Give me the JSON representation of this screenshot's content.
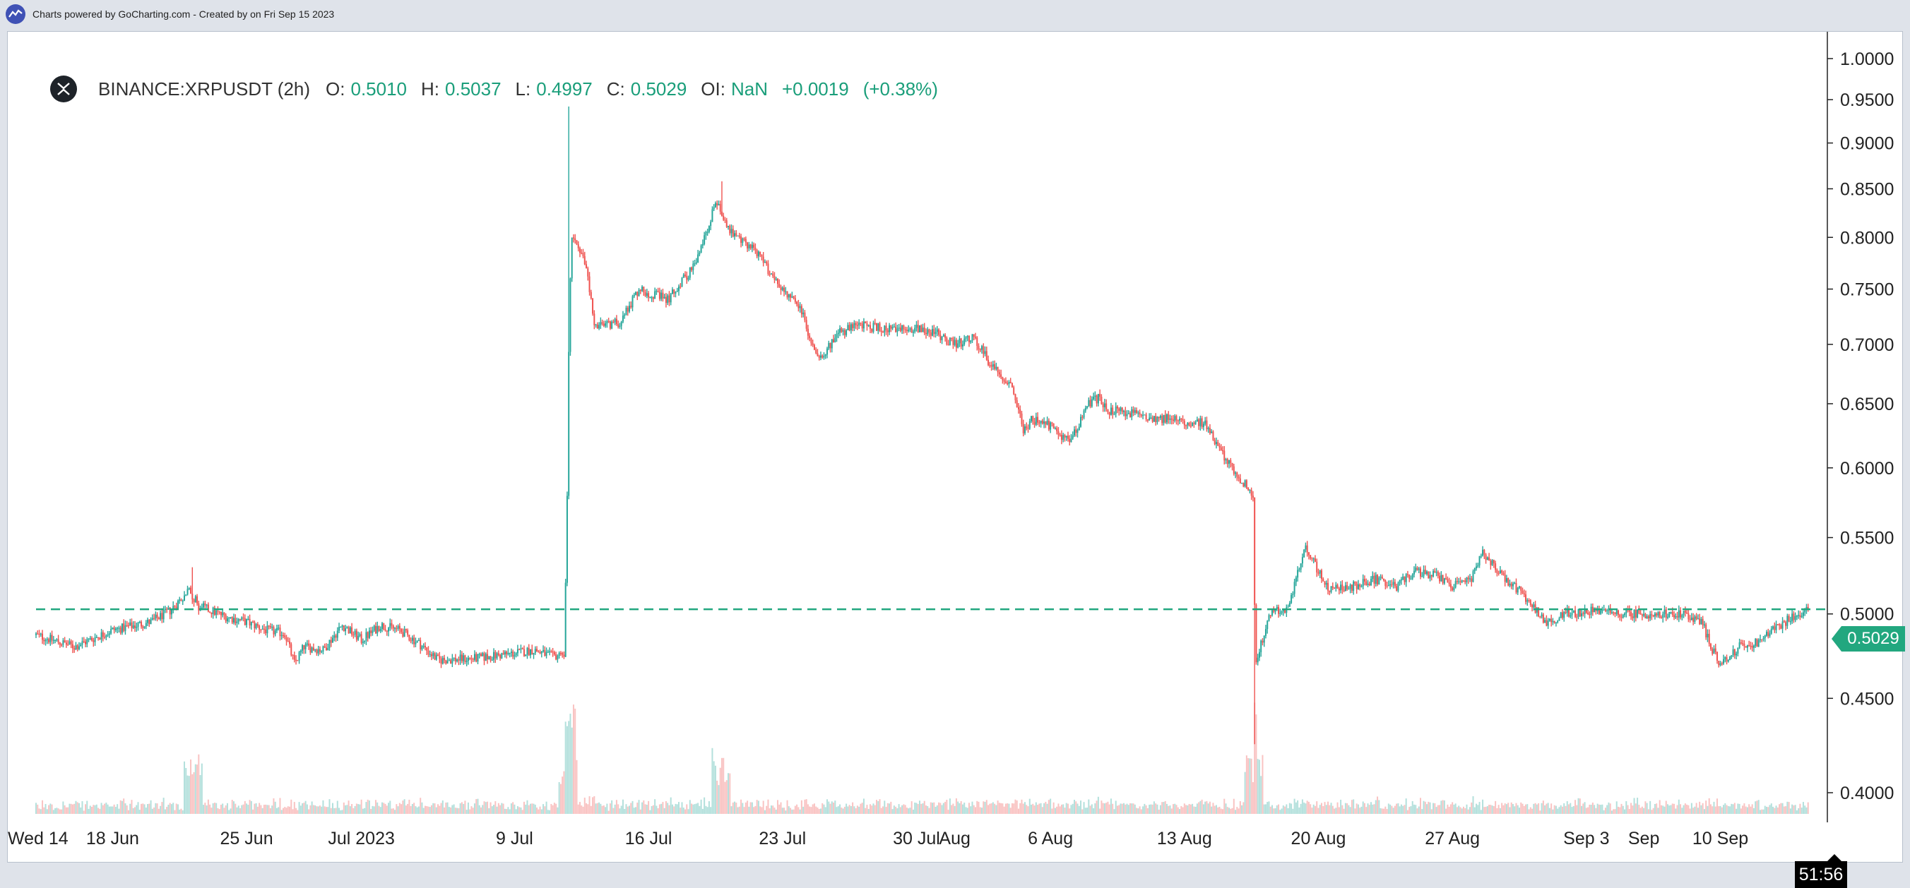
{
  "header": {
    "attribution": "Charts powered by GoCharting.com - Created by  on Fri Sep 15 2023"
  },
  "legend": {
    "symbol": "BINANCE:XRPUSDT (2h)",
    "open_label": "O:",
    "open": "0.5010",
    "high_label": "H:",
    "high": "0.5037",
    "low_label": "L:",
    "low": "0.4997",
    "close_label": "C:",
    "close": "0.5029",
    "oi_label": "OI:",
    "oi": "NaN",
    "change": "+0.0019",
    "change_pct": "(+0.38%)"
  },
  "price_tag": "0.5029",
  "timer": "51:56",
  "colors": {
    "up": "#26a69a",
    "down": "#ef5350",
    "last_price_line": "#22a77f",
    "text_positive": "#1a9e7a"
  },
  "chart_data": {
    "type": "candlestick",
    "interval": "2h",
    "y_axis": {
      "ticks": [
        "1.0000",
        "0.9500",
        "0.9000",
        "0.8500",
        "0.8000",
        "0.7500",
        "0.7000",
        "0.6500",
        "0.6000",
        "0.5500",
        "0.5000",
        "0.4500",
        "0.4000"
      ],
      "range": [
        0.395,
        1.005
      ],
      "scale": "log"
    },
    "x_axis": {
      "ticks": [
        "Wed 14",
        "18 Jun",
        "25 Jun",
        "Jul 2023",
        "9 Jul",
        "16 Jul",
        "23 Jul",
        "30 Jul",
        "Aug",
        "6 Aug",
        "13 Aug",
        "20 Aug",
        "27 Aug",
        "Sep 3",
        "Sep",
        "10 Sep"
      ],
      "tick_days": [
        0,
        4,
        11,
        17,
        25,
        32,
        39,
        46,
        48,
        53,
        60,
        67,
        74,
        81,
        84,
        88
      ],
      "range_days": [
        0,
        93
      ]
    },
    "last_price": 0.5029,
    "price_path": [
      {
        "day": 0,
        "price": 0.487
      },
      {
        "day": 2,
        "price": 0.48
      },
      {
        "day": 4,
        "price": 0.49
      },
      {
        "day": 6,
        "price": 0.495
      },
      {
        "day": 7,
        "price": 0.502
      },
      {
        "day": 8,
        "price": 0.515
      },
      {
        "day": 8.5,
        "price": 0.505
      },
      {
        "day": 10,
        "price": 0.498
      },
      {
        "day": 11,
        "price": 0.495
      },
      {
        "day": 12,
        "price": 0.49
      },
      {
        "day": 13,
        "price": 0.488
      },
      {
        "day": 13.5,
        "price": 0.47
      },
      {
        "day": 14,
        "price": 0.48
      },
      {
        "day": 15,
        "price": 0.478
      },
      {
        "day": 16,
        "price": 0.493
      },
      {
        "day": 17,
        "price": 0.484
      },
      {
        "day": 18,
        "price": 0.493
      },
      {
        "day": 19,
        "price": 0.49
      },
      {
        "day": 20,
        "price": 0.482
      },
      {
        "day": 21,
        "price": 0.472
      },
      {
        "day": 23,
        "price": 0.473
      },
      {
        "day": 25,
        "price": 0.476
      },
      {
        "day": 26,
        "price": 0.478
      },
      {
        "day": 27,
        "price": 0.474
      },
      {
        "day": 27.6,
        "price": 0.476
      },
      {
        "day": 27.75,
        "price": 0.58
      },
      {
        "day": 27.85,
        "price": 0.72
      },
      {
        "day": 28,
        "price": 0.8
      },
      {
        "day": 28.7,
        "price": 0.775
      },
      {
        "day": 29.2,
        "price": 0.715
      },
      {
        "day": 30.5,
        "price": 0.72
      },
      {
        "day": 31.5,
        "price": 0.75
      },
      {
        "day": 33,
        "price": 0.74
      },
      {
        "day": 34.5,
        "price": 0.775
      },
      {
        "day": 35.5,
        "price": 0.835
      },
      {
        "day": 36.5,
        "price": 0.8
      },
      {
        "day": 37.5,
        "price": 0.79
      },
      {
        "day": 38,
        "price": 0.775
      },
      {
        "day": 39,
        "price": 0.75
      },
      {
        "day": 40,
        "price": 0.73
      },
      {
        "day": 40.5,
        "price": 0.7
      },
      {
        "day": 41,
        "price": 0.69
      },
      {
        "day": 42,
        "price": 0.71
      },
      {
        "day": 43,
        "price": 0.717
      },
      {
        "day": 45,
        "price": 0.712
      },
      {
        "day": 46,
        "price": 0.715
      },
      {
        "day": 47,
        "price": 0.71
      },
      {
        "day": 48,
        "price": 0.7
      },
      {
        "day": 49,
        "price": 0.705
      },
      {
        "day": 50,
        "price": 0.68
      },
      {
        "day": 51,
        "price": 0.665
      },
      {
        "day": 51.6,
        "price": 0.628
      },
      {
        "day": 52,
        "price": 0.637
      },
      {
        "day": 53,
        "price": 0.632
      },
      {
        "day": 54,
        "price": 0.62
      },
      {
        "day": 55,
        "price": 0.65
      },
      {
        "day": 55.5,
        "price": 0.655
      },
      {
        "day": 56,
        "price": 0.645
      },
      {
        "day": 58,
        "price": 0.64
      },
      {
        "day": 60,
        "price": 0.636
      },
      {
        "day": 61,
        "price": 0.635
      },
      {
        "day": 62,
        "price": 0.61
      },
      {
        "day": 63,
        "price": 0.59
      },
      {
        "day": 63.6,
        "price": 0.58
      },
      {
        "day": 63.7,
        "price": 0.47
      },
      {
        "day": 64.5,
        "price": 0.5
      },
      {
        "day": 65.5,
        "price": 0.505
      },
      {
        "day": 66.3,
        "price": 0.545
      },
      {
        "day": 67.5,
        "price": 0.515
      },
      {
        "day": 69,
        "price": 0.518
      },
      {
        "day": 70,
        "price": 0.522
      },
      {
        "day": 71,
        "price": 0.517
      },
      {
        "day": 72,
        "price": 0.527
      },
      {
        "day": 73,
        "price": 0.525
      },
      {
        "day": 74,
        "price": 0.518
      },
      {
        "day": 75,
        "price": 0.522
      },
      {
        "day": 75.6,
        "price": 0.54
      },
      {
        "day": 76.5,
        "price": 0.525
      },
      {
        "day": 77.5,
        "price": 0.515
      },
      {
        "day": 78.5,
        "price": 0.5
      },
      {
        "day": 79,
        "price": 0.494
      },
      {
        "day": 80,
        "price": 0.5
      },
      {
        "day": 81,
        "price": 0.502
      },
      {
        "day": 82,
        "price": 0.501
      },
      {
        "day": 84,
        "price": 0.5
      },
      {
        "day": 86,
        "price": 0.5
      },
      {
        "day": 87,
        "price": 0.496
      },
      {
        "day": 87.5,
        "price": 0.48
      },
      {
        "day": 88,
        "price": 0.47
      },
      {
        "day": 89,
        "price": 0.48
      },
      {
        "day": 90,
        "price": 0.483
      },
      {
        "day": 91,
        "price": 0.492
      },
      {
        "day": 92,
        "price": 0.5
      },
      {
        "day": 92.6,
        "price": 0.5029
      }
    ],
    "spikes": [
      {
        "day": 27.8,
        "high": 0.942
      },
      {
        "day": 63.65,
        "low": 0.425
      },
      {
        "day": 35.8,
        "high": 0.858
      },
      {
        "day": 8.2,
        "high": 0.53
      }
    ]
  }
}
